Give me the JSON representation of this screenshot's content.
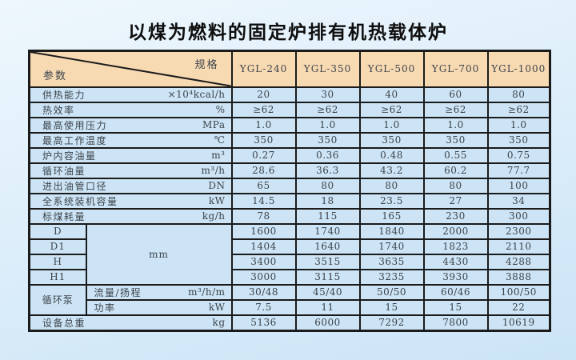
{
  "page_title": "以煤为燃料的固定炉排有机热载体炉",
  "colors": {
    "header_bg": "#f7d9b2",
    "cell_bg": "#cce4f5",
    "border": "#1b1b1b",
    "text": "#3d444c",
    "page_bg_top": "#eef7fd",
    "page_bg_bottom": "#cbe4f6"
  },
  "table": {
    "corner": {
      "top_right": "规格",
      "bottom_left": "参数"
    },
    "models": [
      "YGL-240",
      "YGL-350",
      "YGL-500",
      "YGL-700",
      "YGL-1000"
    ],
    "rows": [
      {
        "label": "供热能力",
        "unit": "×10⁴kcal/h",
        "values": [
          "20",
          "30",
          "40",
          "60",
          "80"
        ]
      },
      {
        "label": "热效率",
        "unit": "%",
        "values": [
          "≥62",
          "≥62",
          "≥62",
          "≥62",
          "≥62"
        ]
      },
      {
        "label": "最高使用压力",
        "unit": "MPa",
        "values": [
          "1.0",
          "1.0",
          "1.0",
          "1.0",
          "1.0"
        ]
      },
      {
        "label": "最高工作温度",
        "unit": "℃",
        "values": [
          "350",
          "350",
          "350",
          "350",
          "350"
        ]
      },
      {
        "label": "炉内容油量",
        "unit": "m³",
        "values": [
          "0.27",
          "0.36",
          "0.48",
          "0.55",
          "0.75"
        ]
      },
      {
        "label": "循环油量",
        "unit": "m³/h",
        "values": [
          "28.6",
          "36.3",
          "43.2",
          "60.2",
          "77.7"
        ]
      },
      {
        "label": "进出油管口径",
        "unit": "DN",
        "values": [
          "65",
          "80",
          "80",
          "80",
          "100"
        ]
      },
      {
        "label": "全系统装机容量",
        "unit": "kW",
        "values": [
          "14.5",
          "18",
          "23.5",
          "27",
          "34"
        ]
      },
      {
        "label": "标煤耗量",
        "unit": "kg/h",
        "values": [
          "78",
          "115",
          "165",
          "230",
          "300"
        ]
      }
    ],
    "dimensions": {
      "unit": "mm",
      "rows": [
        {
          "label": "D",
          "values": [
            "1600",
            "1740",
            "1840",
            "2000",
            "2300"
          ]
        },
        {
          "label": "D1",
          "values": [
            "1404",
            "1640",
            "1740",
            "1823",
            "2110"
          ]
        },
        {
          "label": "H",
          "values": [
            "3400",
            "3515",
            "3635",
            "4430",
            "4288"
          ]
        },
        {
          "label": "H1",
          "values": [
            "3000",
            "3115",
            "3235",
            "3930",
            "3888"
          ]
        }
      ]
    },
    "pump": {
      "label": "循环泵",
      "rows": [
        {
          "label": "流量/扬程",
          "unit": "m³/h/m",
          "values": [
            "30/48",
            "45/40",
            "50/50",
            "60/46",
            "100/50"
          ]
        },
        {
          "label": "功率",
          "unit": "kW",
          "values": [
            "7.5",
            "11",
            "15",
            "15",
            "22"
          ]
        }
      ]
    },
    "total_weight": {
      "label": "设备总重",
      "unit": "kg",
      "values": [
        "5136",
        "6000",
        "7292",
        "7800",
        "10619"
      ]
    }
  }
}
